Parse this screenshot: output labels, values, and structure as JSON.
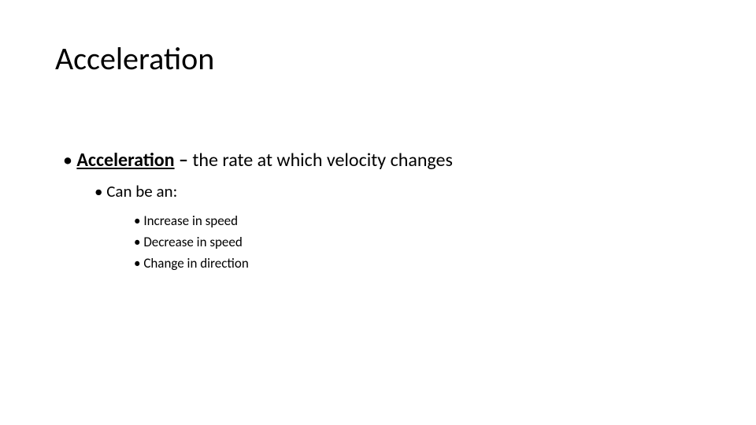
{
  "slide": {
    "title": "Acceleration",
    "definition": {
      "term": "Acceleration",
      "separator": " – ",
      "text": "the rate at which velocity changes"
    },
    "subheading": "Can be an:",
    "items": [
      "Increase in speed",
      "Decrease in speed",
      "Change in direction"
    ]
  },
  "style": {
    "background_color": "#ffffff",
    "text_color": "#000000",
    "font_family": "Calibri",
    "title_fontsize": 40,
    "level1_fontsize": 24,
    "level2_fontsize": 21,
    "level3_fontsize": 17
  }
}
